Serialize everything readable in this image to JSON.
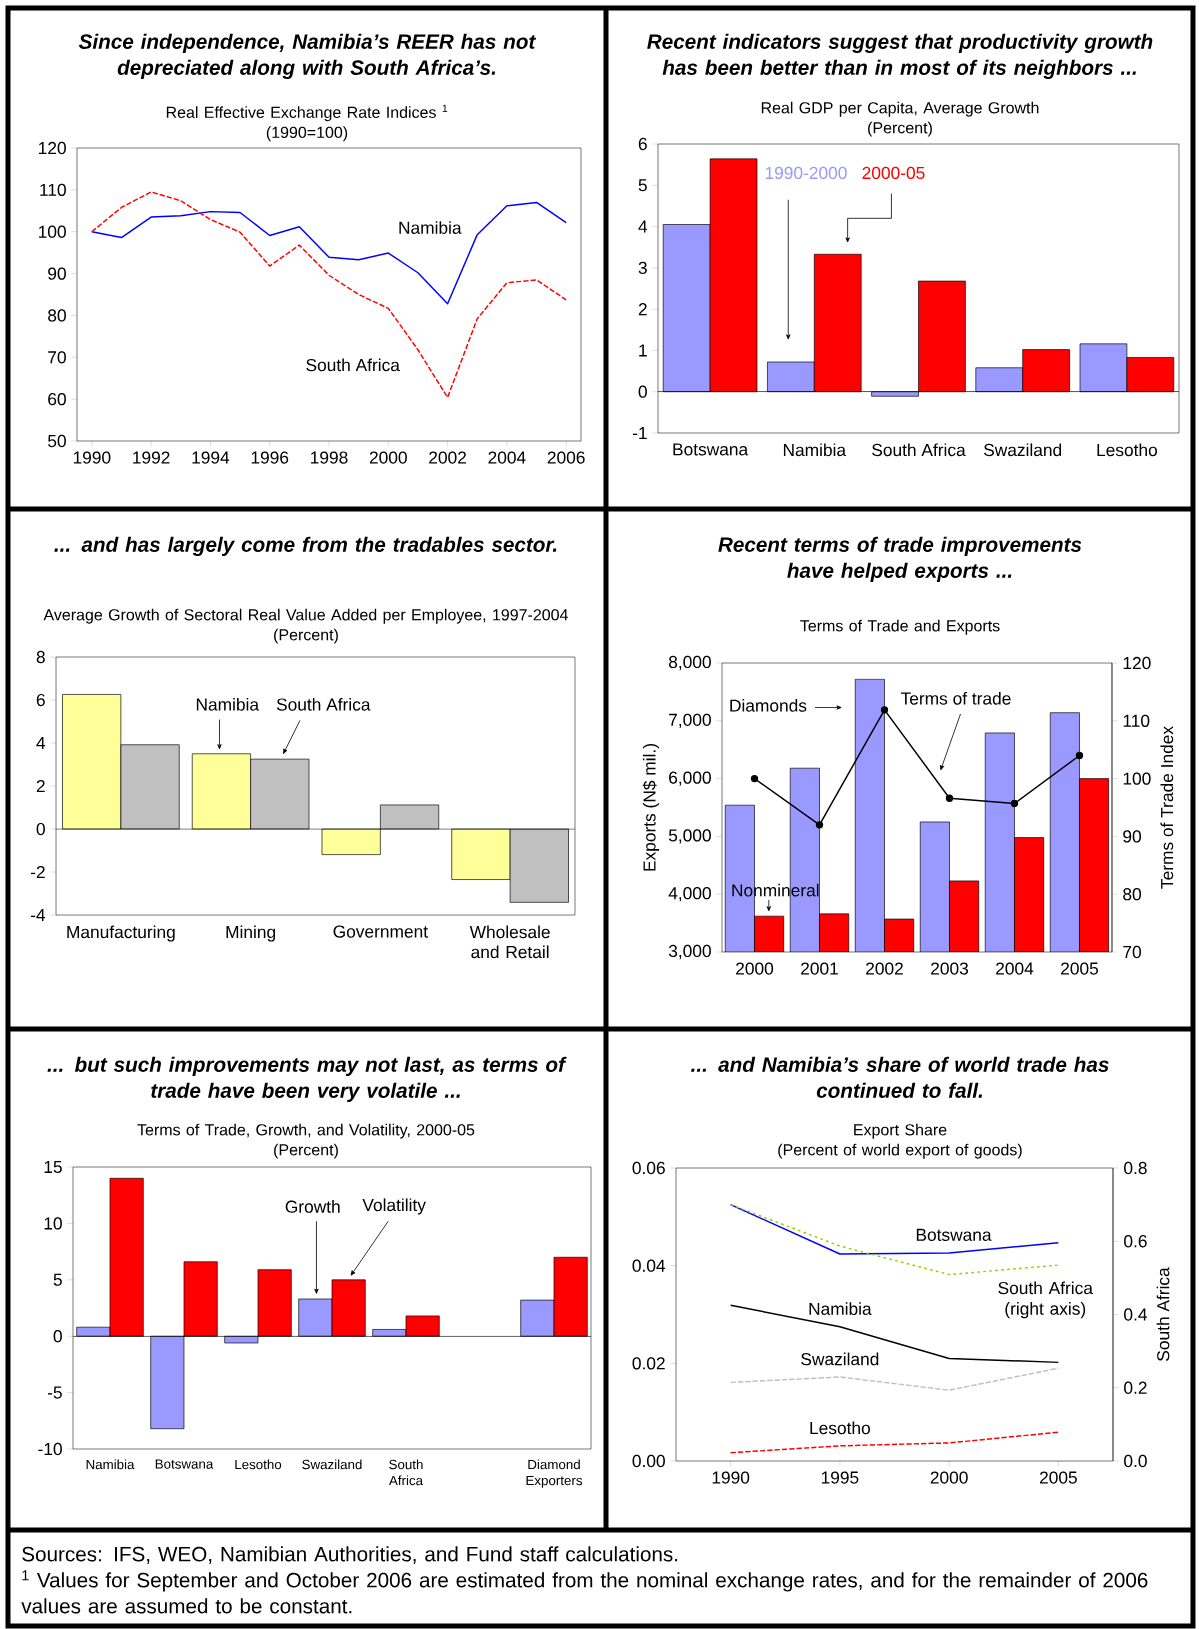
{
  "chart_data": [
    {
      "type": "line",
      "title": "Since independence, Namibia’s REER has not\ndepreciated along with South Africa’s.",
      "subtitle": "Real Effective Exchange Rate Indices $^{1}$\n(1990=100)",
      "x": [
        1990,
        1991,
        1992,
        1993,
        1994,
        1995,
        1996,
        1997,
        1998,
        1999,
        2000,
        2001,
        2002,
        2003,
        2004,
        2005,
        2006
      ],
      "xlim": [
        1989.5,
        2006.5
      ],
      "xticks": [
        1990,
        1992,
        1994,
        1996,
        1998,
        2000,
        2002,
        2004,
        2006
      ],
      "ylim": [
        50,
        120
      ],
      "yticks": [
        50,
        60,
        70,
        80,
        90,
        100,
        110,
        120
      ],
      "series": [
        {
          "name": "Namibia",
          "color": "#0000ff",
          "line_style": "solid",
          "values": [
            100,
            98.6,
            103.5,
            103.8,
            104.8,
            104.6,
            99.1,
            101.2,
            93.9,
            93.3,
            94.9,
            90.2,
            82.8,
            99.3,
            106.2,
            107.0,
            102.2
          ]
        },
        {
          "name": "South Africa",
          "color": "#ff0000",
          "line_style": "dashed",
          "values": [
            100,
            105.8,
            109.5,
            107.4,
            102.9,
            99.9,
            91.8,
            96.8,
            89.6,
            85.0,
            81.7,
            71.8,
            60.4,
            79.2,
            87.8,
            88.5,
            83.7
          ]
        }
      ],
      "annotations": [
        "Sources: IFS, WEO, Namibian Authorities, and Fund staff calculations.",
        "$^{1}$ Values for September and October 2006 are estimated from the nominal exchange rates, and for the remainder of 2006 values are assumed to be constant."
      ]
    },
    {
      "type": "bar",
      "title": "Recent indicators suggest that productivity growth\nhas been better than in most of its neighbors ...",
      "subtitle": "Real GDP per Capita, Average Growth\n(Percent)",
      "categories": [
        "Botswana",
        "Namibia",
        "South Africa",
        "Swaziland",
        "Lesotho"
      ],
      "ylim": [
        -1,
        6
      ],
      "yticks": [
        -1,
        0,
        1,
        2,
        3,
        4,
        5,
        6
      ],
      "series": [
        {
          "name": "1990-2000",
          "color": "#9999ff",
          "values": [
            4.05,
            0.72,
            -0.11,
            0.58,
            1.16
          ]
        },
        {
          "name": "2000-05",
          "color": "#ff0000",
          "values": [
            5.64,
            3.33,
            2.68,
            1.02,
            0.83
          ]
        }
      ]
    },
    {
      "type": "bar",
      "title": "... and has largely come from the tradables sector.",
      "subtitle": "Average Growth of Sectoral Real Value Added per Employee, 1997-2004\n(Percent)",
      "categories": [
        "Manufacturing",
        "Mining",
        "Government",
        "Wholesale and Retail"
      ],
      "ylim": [
        -4,
        8
      ],
      "yticks": [
        -4,
        -2,
        0,
        2,
        4,
        6,
        8
      ],
      "series": [
        {
          "name": "Namibia",
          "color": "#ffff99",
          "values": [
            6.26,
            3.5,
            -1.19,
            -2.35
          ]
        },
        {
          "name": "South Africa",
          "color": "#c0c0c0",
          "values": [
            3.92,
            3.25,
            1.12,
            -3.41
          ]
        }
      ]
    },
    {
      "type": "bar",
      "title": "Recent terms of trade improvements\nhave helped exports ...",
      "subtitle": "Terms of Trade and Exports",
      "categories": [
        "2000",
        "2001",
        "2002",
        "2003",
        "2004",
        "2005"
      ],
      "ylabel": "Exports (N$ mil.)",
      "y2label": "Terms of Trade Index",
      "ylim": [
        3000,
        8000
      ],
      "yticks": [
        {
          "value": 3000,
          "label": "3,000"
        },
        {
          "value": 4000,
          "label": "4,000"
        },
        {
          "value": 5000,
          "label": "5,000"
        },
        {
          "value": 6000,
          "label": "6,000"
        },
        {
          "value": 7000,
          "label": "7,000"
        },
        {
          "value": 8000,
          "label": "8,000"
        }
      ],
      "y2lim": [
        70,
        120
      ],
      "y2ticks": [
        70,
        80,
        90,
        100,
        110,
        120
      ],
      "series": [
        {
          "name": "Diamonds",
          "color": "#9999ff",
          "values": [
            5540,
            6180,
            7720,
            5250,
            6790,
            7140
          ]
        },
        {
          "name": "Nonmineral",
          "color": "#ff0000",
          "values": [
            3620,
            3660,
            3570,
            4230,
            4980,
            6000
          ]
        },
        {
          "name": "Terms of trade",
          "type": "line",
          "axis": "y2",
          "color": "#000000",
          "marker": "circle",
          "values": [
            100.0,
            92.0,
            111.9,
            96.6,
            95.7,
            104.0
          ]
        }
      ]
    },
    {
      "type": "bar",
      "title": "... but such improvements may not last, as terms of\ntrade have been very volatile ...",
      "subtitle": "Terms of Trade, Growth, and Volatility, 2000-05\n(Percent)",
      "categories": [
        "Namibia",
        "Botswana",
        "Lesotho",
        "Swaziland",
        "South Africa",
        null,
        "Diamond Exporters"
      ],
      "ylim": [
        -10,
        15
      ],
      "yticks": [
        -10,
        -5,
        0,
        5,
        10,
        15
      ],
      "series": [
        {
          "name": "Growth",
          "color": "#9999ff",
          "values": [
            0.8,
            -8.2,
            -0.6,
            3.3,
            0.6,
            null,
            3.2
          ]
        },
        {
          "name": "Volatility",
          "color": "#ff0000",
          "values": [
            14.0,
            6.6,
            5.9,
            5.0,
            1.8,
            null,
            7.0
          ]
        }
      ]
    },
    {
      "type": "line",
      "title": "... and Namibia’s share of world trade has\ncontinued to fall.",
      "subtitle": "Export Share\n(Percent of world export of goods)",
      "x": [
        1990,
        1995,
        2000,
        2005
      ],
      "xlim": [
        1987.5,
        2007.5
      ],
      "xticks": [
        1990,
        1995,
        2000,
        2005
      ],
      "ylim": [
        0,
        0.06
      ],
      "yticks": [
        {
          "value": 0,
          "label": "0.00"
        },
        0.02,
        0.04,
        0.06
      ],
      "y2label": "South Africa",
      "y2lim": [
        0,
        0.8
      ],
      "y2ticks": [
        {
          "value": 0,
          "label": "0.0"
        },
        0.2,
        0.4,
        0.6,
        0.8
      ],
      "series": [
        {
          "name": "Botswana",
          "color": "#0000ff",
          "line_style": "solid",
          "values": [
            0.0525,
            0.0424,
            0.0426,
            0.0447
          ]
        },
        {
          "name": "South Africa\n(right axis)",
          "color": "#99cc00",
          "line_style": "dotted",
          "axis": "y2",
          "values": [
            0.7,
            0.587,
            0.509,
            0.535
          ]
        },
        {
          "name": "Namibia",
          "color": "#000000",
          "line_style": "solid",
          "values": [
            0.0319,
            0.0275,
            0.021,
            0.0202
          ]
        },
        {
          "name": "Swaziland",
          "color": "#c0c0c0",
          "line_style": "dashed",
          "values": [
            0.0161,
            0.0172,
            0.0145,
            0.019
          ]
        },
        {
          "name": "Lesotho",
          "color": "#ff0000",
          "line_style": "dashed",
          "values": [
            0.0017,
            0.0031,
            0.0037,
            0.0059
          ]
        }
      ]
    }
  ]
}
